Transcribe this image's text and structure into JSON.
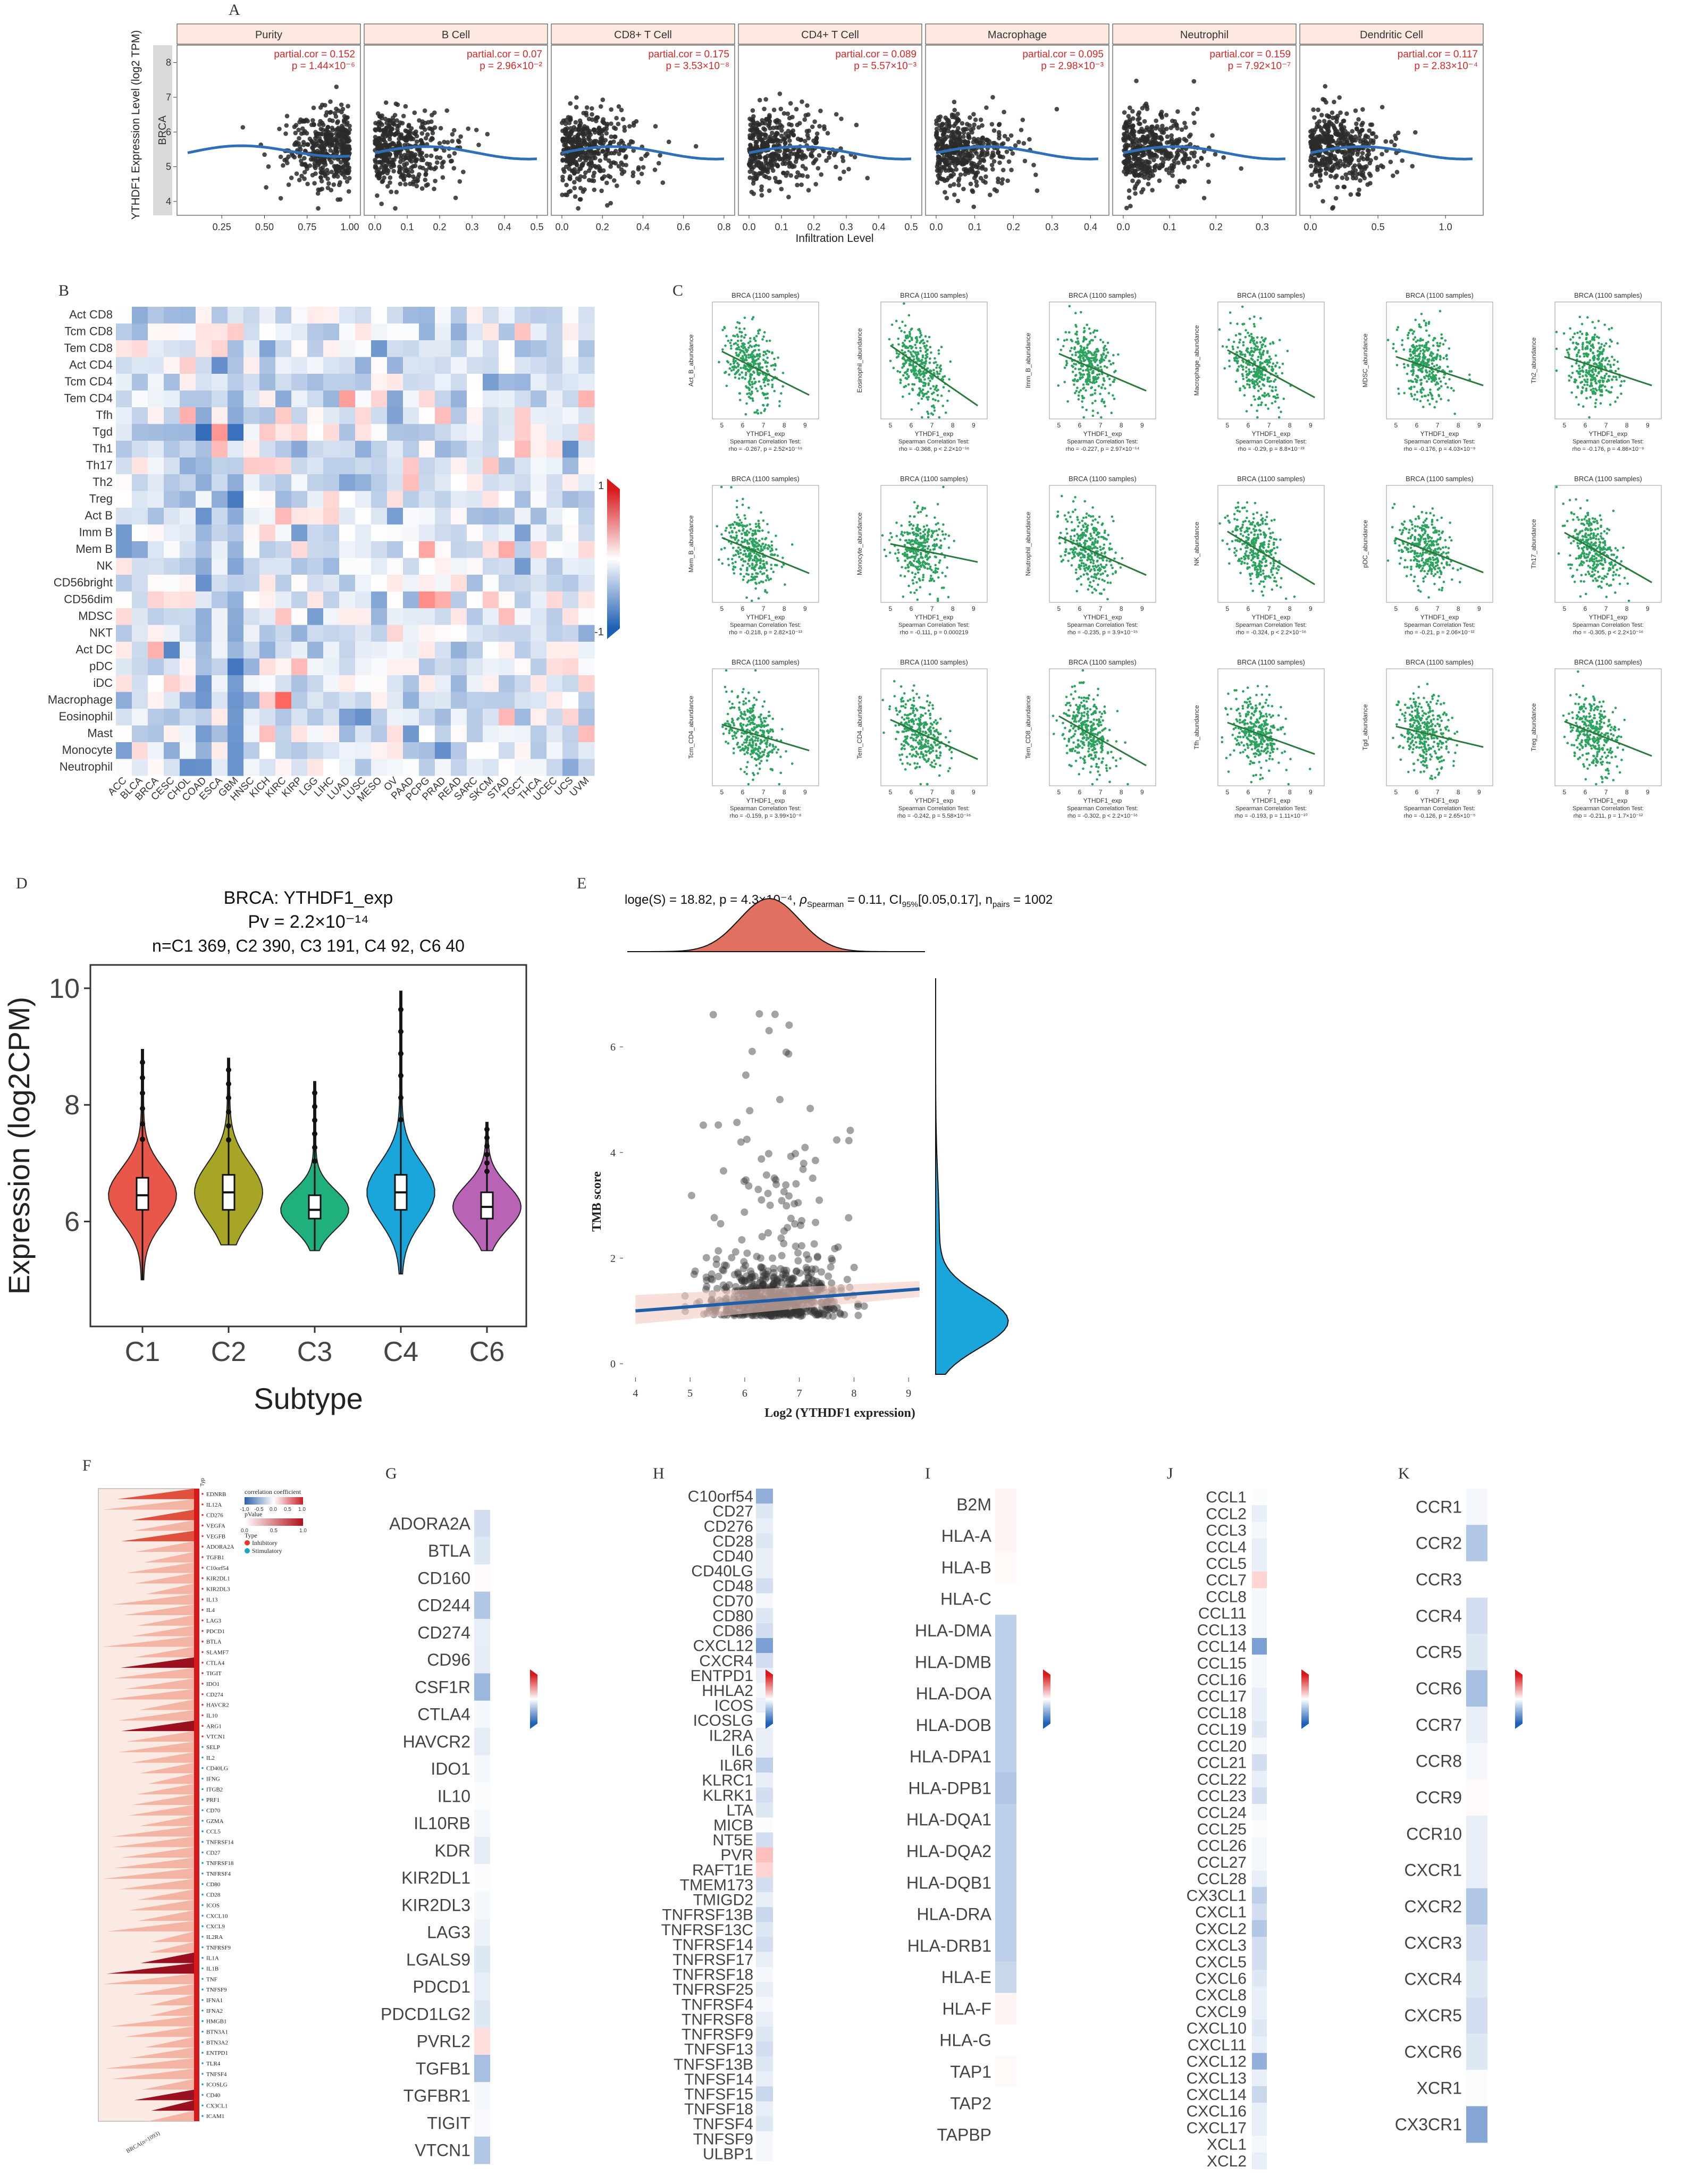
{
  "panels": {
    "A": {
      "label": "A",
      "ylabel": "YTHDF1 Expression Level (log2 TPM)",
      "cancer": "BRCA",
      "xlabel": "Infiltration Level",
      "y_ticks": [
        "4",
        "5",
        "6",
        "7",
        "8"
      ],
      "facets": [
        {
          "title": "Purity",
          "cor": "partial.cor = 0.152",
          "p": "p = 1.44×10⁻⁶",
          "ticks": [
            "0.25",
            "0.50",
            "0.75",
            "1.00"
          ],
          "range": [
            0.05,
            1.0
          ]
        },
        {
          "title": "B Cell",
          "cor": "partial.cor = 0.07",
          "p": "p = 2.96×10⁻²",
          "ticks": [
            "0.0",
            "0.1",
            "0.2",
            "0.3",
            "0.4",
            "0.5"
          ],
          "range": [
            0.0,
            0.5
          ]
        },
        {
          "title": "CD8+ T Cell",
          "cor": "partial.cor = 0.175",
          "p": "p = 3.53×10⁻⁸",
          "ticks": [
            "0.0",
            "0.2",
            "0.4",
            "0.6",
            "0.8"
          ],
          "range": [
            0.0,
            0.8
          ]
        },
        {
          "title": "CD4+ T Cell",
          "cor": "partial.cor = 0.089",
          "p": "p = 5.57×10⁻³",
          "ticks": [
            "0.0",
            "0.1",
            "0.2",
            "0.3",
            "0.4",
            "0.5"
          ],
          "range": [
            0.0,
            0.5
          ]
        },
        {
          "title": "Macrophage",
          "cor": "partial.cor = 0.095",
          "p": "p = 2.98×10⁻³",
          "ticks": [
            "0.0",
            "0.1",
            "0.2",
            "0.3",
            "0.4"
          ],
          "range": [
            0.0,
            0.42
          ]
        },
        {
          "title": "Neutrophil",
          "cor": "partial.cor = 0.159",
          "p": "p = 7.92×10⁻⁷",
          "ticks": [
            "0.0",
            "0.1",
            "0.2",
            "0.3"
          ],
          "range": [
            0.0,
            0.35
          ]
        },
        {
          "title": "Dendritic Cell",
          "cor": "partial.cor = 0.117",
          "p": "p = 2.83×10⁻⁴",
          "ticks": [
            "0.0",
            "0.5",
            "1.0"
          ],
          "range": [
            0.0,
            1.2
          ]
        }
      ]
    },
    "B": {
      "label": "B",
      "rows": [
        "Act CD8",
        "Tcm CD8",
        "Tem CD8",
        "Act CD4",
        "Tcm CD4",
        "Tem CD4",
        "Tfh",
        "Tgd",
        "Th1",
        "Th17",
        "Th2",
        "Treg",
        "Act B",
        "Imm B",
        "Mem B",
        "NK",
        "CD56bright",
        "CD56dim",
        "MDSC",
        "NKT",
        "Act DC",
        "pDC",
        "iDC",
        "Macrophage",
        "Eosinophil",
        "Mast",
        "Monocyte",
        "Neutrophil"
      ],
      "cols": [
        "ACC",
        "BLCA",
        "BRCA",
        "CESC",
        "CHOL",
        "COAD",
        "ESCA",
        "GBM",
        "HNSC",
        "KICH",
        "KIRC",
        "KIRP",
        "LGG",
        "LIHC",
        "LUAD",
        "LUSC",
        "MESO",
        "OV",
        "PAAD",
        "PCPG",
        "PRAD",
        "READ",
        "SARC",
        "SKCM",
        "STAD",
        "TGCT",
        "THCA",
        "UCEC",
        "UCS",
        "UVM"
      ],
      "legend_max": "1",
      "legend_min": "-1"
    },
    "C": {
      "label": "C",
      "plots": [
        {
          "title": "BRCA (1100 samples)",
          "ylabel": "Act_B_abundance",
          "xlabel": "YTHDF1_exp",
          "test": "Spearman Correlation Test:",
          "stat": "rho = -0.267,   p = 2.52×10⁻¹⁹",
          "rho": -0.267
        },
        {
          "title": "BRCA (1100 samples)",
          "ylabel": "Eosinophil_abundance",
          "xlabel": "YTHDF1_exp",
          "test": "Spearman Correlation Test:",
          "stat": "rho = -0.368,   p < 2.2×10⁻¹⁶",
          "rho": -0.368
        },
        {
          "title": "BRCA (1100 samples)",
          "ylabel": "Imm_B_abundance",
          "xlabel": "YTHDF1_exp",
          "test": "Spearman Correlation Test:",
          "stat": "rho = -0.227,   p = 2.97×10⁻¹⁴",
          "rho": -0.227
        },
        {
          "title": "BRCA (1100 samples)",
          "ylabel": "Macrophage_abundance",
          "xlabel": "YTHDF1_exp",
          "test": "Spearman Correlation Test:",
          "stat": "rho = -0.29,   p = 8.8×10⁻²³",
          "rho": -0.29
        },
        {
          "title": "BRCA (1100 samples)",
          "ylabel": "MDSC_abundance",
          "xlabel": "YTHDF1_exp",
          "test": "Spearman Correlation Test:",
          "stat": "rho = -0.176,   p = 4.03×10⁻⁹",
          "rho": -0.176
        },
        {
          "title": "BRCA (1100 samples)",
          "ylabel": "Th2_abundance",
          "xlabel": "YTHDF1_exp",
          "test": "Spearman Correlation Test:",
          "stat": "rho = -0.176,   p = 4.86×10⁻⁹",
          "rho": -0.176
        },
        {
          "title": "BRCA (1100 samples)",
          "ylabel": "Mem_B_abundance",
          "xlabel": "YTHDF1_exp",
          "test": "Spearman Correlation Test:",
          "stat": "rho = -0.218,   p = 2.82×10⁻¹³",
          "rho": -0.218
        },
        {
          "title": "BRCA (1100 samples)",
          "ylabel": "Monocyte_abundance",
          "xlabel": "YTHDF1_exp",
          "test": "Spearman Correlation Test:",
          "stat": "rho = -0.111,   p = 0.000219",
          "rho": -0.111
        },
        {
          "title": "BRCA (1100 samples)",
          "ylabel": "Neutrophil_abundance",
          "xlabel": "YTHDF1_exp",
          "test": "Spearman Correlation Test:",
          "stat": "rho = -0.235,   p = 3.9×10⁻¹⁵",
          "rho": -0.235
        },
        {
          "title": "BRCA (1100 samples)",
          "ylabel": "NK_abundance",
          "xlabel": "YTHDF1_exp",
          "test": "Spearman Correlation Test:",
          "stat": "rho = -0.324,   p < 2.2×10⁻¹⁶",
          "rho": -0.324
        },
        {
          "title": "BRCA (1100 samples)",
          "ylabel": "pDC_abundance",
          "xlabel": "YTHDF1_exp",
          "test": "Spearman Correlation Test:",
          "stat": "rho = -0.21,   p = 2.06×10⁻¹²",
          "rho": -0.21
        },
        {
          "title": "BRCA (1100 samples)",
          "ylabel": "Th17_abundance",
          "xlabel": "YTHDF1_exp",
          "test": "Spearman Correlation Test:",
          "stat": "rho = -0.305,   p < 2.2×10⁻¹⁶",
          "rho": -0.305
        },
        {
          "title": "BRCA (1100 samples)",
          "ylabel": "Tcm_CD4_abundance",
          "xlabel": "YTHDF1_exp",
          "test": "Spearman Correlation Test:",
          "stat": "rho = -0.159,   p = 3.99×10⁻⁸",
          "rho": -0.159
        },
        {
          "title": "BRCA (1100 samples)",
          "ylabel": "Tem_CD4_abundance",
          "xlabel": "YTHDF1_exp",
          "test": "Spearman Correlation Test:",
          "stat": "rho = -0.242,   p = 5.58×10⁻¹⁶",
          "rho": -0.242
        },
        {
          "title": "BRCA (1100 samples)",
          "ylabel": "Tem_CD8_abundance",
          "xlabel": "YTHDF1_exp",
          "test": "Spearman Correlation Test:",
          "stat": "rho = -0.302,   p < 2.2×10⁻¹⁶",
          "rho": -0.302
        },
        {
          "title": "BRCA (1100 samples)",
          "ylabel": "Tfh_abundance",
          "xlabel": "YTHDF1_exp",
          "test": "Spearman Correlation Test:",
          "stat": "rho = -0.193,   p = 1.11×10⁻¹⁰",
          "rho": -0.193
        },
        {
          "title": "BRCA (1100 samples)",
          "ylabel": "Tgd_abundance",
          "xlabel": "YTHDF1_exp",
          "test": "Spearman Correlation Test:",
          "stat": "rho = -0.126,   p = 2.65×10⁻⁵",
          "rho": -0.126
        },
        {
          "title": "BRCA (1100 samples)",
          "ylabel": "Treg_abundance",
          "xlabel": "YTHDF1_exp",
          "test": "Spearman Correlation Test:",
          "stat": "rho = -0.211,   p = 1.7×10⁻¹²",
          "rho": -0.211
        }
      ],
      "x_ticks": [
        "5",
        "6",
        "7",
        "8",
        "9"
      ]
    },
    "D": {
      "label": "D",
      "title1": "BRCA: YTHDF1_exp",
      "title2": "Pv = 2.2×10⁻¹⁴",
      "title3": "n=C1 369, C2 390, C3 191, C4 92, C6 40",
      "ylabel": "Expression (log2CPM)",
      "xlabel": "Subtype",
      "y_ticks": [
        "6",
        "8",
        "10"
      ],
      "groups": [
        {
          "name": "C1",
          "color": "#e8574a",
          "min": 5.0,
          "q1": 6.2,
          "median": 6.45,
          "q3": 6.75,
          "max": 8.95
        },
        {
          "name": "C2",
          "color": "#a6a526",
          "min": 5.6,
          "q1": 6.2,
          "median": 6.5,
          "q3": 6.8,
          "max": 8.8
        },
        {
          "name": "C3",
          "color": "#1fb07b",
          "min": 5.5,
          "q1": 6.05,
          "median": 6.2,
          "q3": 6.45,
          "max": 8.4
        },
        {
          "name": "C4",
          "color": "#1aa5db",
          "min": 5.1,
          "q1": 6.2,
          "median": 6.5,
          "q3": 6.8,
          "max": 9.95
        },
        {
          "name": "C6",
          "color": "#b863b6",
          "min": 5.5,
          "q1": 6.05,
          "median": 6.25,
          "q3": 6.5,
          "max": 7.7
        }
      ]
    },
    "E": {
      "label": "E",
      "stat_prefix": "loge(S) = 18.82, p = 4.3×10⁻⁴,  ",
      "stat_rho": "ρ",
      "stat_rho_sub": "Spearman",
      "stat_suffix": " = 0.11, CI",
      "stat_ci_sub": "95%",
      "stat_ci": "[0.05,0.17], n",
      "stat_n_sub": "pairs",
      "stat_n": " = 1002",
      "ylabel": "TMB score",
      "xlabel": "Log2 (YTHDF1 expression)",
      "x_ticks": [
        "4",
        "5",
        "6",
        "7",
        "8",
        "9"
      ],
      "y_ticks": [
        "0",
        "2",
        "4",
        "6"
      ],
      "n_points": 1002
    },
    "F": {
      "label": "F",
      "genes": [
        "EDNRB",
        "IL12A",
        "CD276",
        "VEGFA",
        "VEGFB",
        "ADORA2A",
        "TGFB1",
        "C10orf54",
        "KIR2DL1",
        "KIR2DL3",
        "IL13",
        "IL4",
        "LAG3",
        "PDCD1",
        "BTLA",
        "SLAMF7",
        "CTLA4",
        "TIGIT",
        "IDO1",
        "CD274",
        "HAVCR2",
        "IL10",
        "ARG1",
        "VTCN1",
        "SELP",
        "IL2",
        "CD40LG",
        "IFNG",
        "ITGB2",
        "PRF1",
        "CD70",
        "GZMA",
        "CCL5",
        "TNFRSF14",
        "CD27",
        "TNFRSF18",
        "TNFRSF4",
        "CD80",
        "CD28",
        "ICOS",
        "CXCL10",
        "CXCL9",
        "IL2RA",
        "TNFRSF9",
        "IL1A",
        "IL1B",
        "TNF",
        "TNFSF9",
        "IFNA1",
        "IFNA2",
        "HMGB1",
        "BTN3A1",
        "BTN3A2",
        "ENTPD1",
        "TLR4",
        "TNFSF4",
        "ICOSLG",
        "CD40",
        "CX3CL1",
        "ICAM1"
      ],
      "sample": "BRCA(n=1093)",
      "legend_title1": "correlation coefficient",
      "legend_ticks1": [
        "-1.0",
        "-0.5",
        "0.0",
        "0.5",
        "1.0"
      ],
      "legend_title2": "pValue",
      "legend_ticks2": [
        "0.0",
        "0.5",
        "1.0"
      ],
      "legend_type_title": "Type",
      "legend_type1": "Inhibitory",
      "legend_type2": "Stimulatory",
      "type_col_label": "Type"
    },
    "G": {
      "label": "G",
      "genes": [
        "ADORA2A",
        "BTLA",
        "CD160",
        "CD244",
        "CD274",
        "CD96",
        "CSF1R",
        "CTLA4",
        "HAVCR2",
        "IDO1",
        "IL10",
        "IL10RB",
        "KDR",
        "KIR2DL1",
        "KIR2DL3",
        "LAG3",
        "LGALS9",
        "PDCD1",
        "PDCD1LG2",
        "PVRL2",
        "TGFB1",
        "TGFBR1",
        "TIGIT",
        "VTCN1"
      ],
      "values": [
        -0.2,
        -0.15,
        0.02,
        -0.35,
        -0.1,
        -0.12,
        -0.45,
        -0.05,
        -0.12,
        -0.05,
        -0.02,
        -0.05,
        -0.12,
        -0.02,
        -0.04,
        -0.08,
        -0.15,
        -0.1,
        -0.15,
        0.15,
        -0.4,
        -0.05,
        -0.03,
        -0.35
      ]
    },
    "H": {
      "label": "H",
      "genes": [
        "C10orf54",
        "CD27",
        "CD276",
        "CD28",
        "CD40",
        "CD40LG",
        "CD48",
        "CD70",
        "CD80",
        "CD86",
        "CXCL12",
        "CXCR4",
        "ENTPD1",
        "HHLA2",
        "ICOS",
        "ICOSLG",
        "IL2RA",
        "IL6",
        "IL6R",
        "KLRC1",
        "KLRK1",
        "LTA",
        "MICB",
        "NT5E",
        "PVR",
        "RAFT1E",
        "TMEM173",
        "TMIGD2",
        "TNFRSF13B",
        "TNFRSF13C",
        "TNFRSF14",
        "TNFRSF17",
        "TNFRSF18",
        "TNFRSF25",
        "TNFRSF4",
        "TNFRSF8",
        "TNFRSF9",
        "TNFSF13",
        "TNFSF13B",
        "TNFSF14",
        "TNFSF15",
        "TNFSF18",
        "TNFSF4",
        "TNFSF9",
        "ULBP1"
      ],
      "values": [
        -0.5,
        -0.15,
        -0.1,
        -0.15,
        -0.1,
        -0.1,
        -0.2,
        -0.05,
        -0.15,
        -0.2,
        -0.6,
        -0.2,
        -0.1,
        -0.05,
        -0.1,
        -0.02,
        -0.1,
        -0.1,
        -0.3,
        -0.1,
        -0.2,
        -0.15,
        -0.02,
        -0.2,
        0.3,
        0.2,
        -0.2,
        -0.1,
        -0.25,
        -0.15,
        -0.2,
        -0.1,
        -0.05,
        -0.1,
        -0.05,
        -0.1,
        -0.15,
        -0.2,
        -0.15,
        -0.1,
        -0.25,
        -0.1,
        -0.15,
        -0.05,
        -0.05
      ]
    },
    "I": {
      "label": "I",
      "genes": [
        "B2M",
        "HLA-A",
        "HLA-B",
        "HLA-C",
        "HLA-DMA",
        "HLA-DMB",
        "HLA-DOA",
        "HLA-DOB",
        "HLA-DPA1",
        "HLA-DPB1",
        "HLA-DQA1",
        "HLA-DQA2",
        "HLA-DQB1",
        "HLA-DRA",
        "HLA-DRB1",
        "HLA-E",
        "HLA-F",
        "HLA-G",
        "TAP1",
        "TAP2",
        "TAPBP"
      ],
      "values": [
        0.05,
        0.05,
        0.03,
        0.0,
        -0.3,
        -0.3,
        -0.3,
        -0.3,
        -0.3,
        -0.35,
        -0.3,
        -0.3,
        -0.3,
        -0.3,
        -0.3,
        -0.25,
        0.05,
        0.0,
        0.03,
        0.0,
        0.0
      ]
    },
    "J": {
      "label": "J",
      "genes": [
        "CCL1",
        "CCL2",
        "CCL3",
        "CCL4",
        "CCL5",
        "CCL7",
        "CCL8",
        "CCL11",
        "CCL13",
        "CCL14",
        "CCL15",
        "CCL16",
        "CCL17",
        "CCL18",
        "CCL19",
        "CCL20",
        "CCL21",
        "CCL22",
        "CCL23",
        "CCL24",
        "CCL25",
        "CCL26",
        "CCL27",
        "CCL28",
        "CX3CL1",
        "CXCL1",
        "CXCL2",
        "CXCL3",
        "CXCL5",
        "CXCL6",
        "CXCL8",
        "CXCL9",
        "CXCL10",
        "CXCL11",
        "CXCL12",
        "CXCL13",
        "CXCL14",
        "CXCL16",
        "CXCL17",
        "XCL1",
        "XCL2"
      ],
      "values": [
        -0.02,
        -0.1,
        -0.05,
        -0.1,
        -0.1,
        0.2,
        -0.05,
        -0.05,
        -0.05,
        -0.6,
        -0.05,
        -0.05,
        -0.1,
        -0.1,
        -0.15,
        -0.05,
        -0.2,
        -0.1,
        -0.2,
        -0.05,
        -0.02,
        -0.05,
        -0.05,
        -0.1,
        -0.3,
        -0.2,
        -0.35,
        -0.2,
        -0.2,
        -0.15,
        -0.1,
        -0.1,
        -0.15,
        -0.1,
        -0.5,
        -0.1,
        -0.25,
        -0.1,
        -0.1,
        -0.05,
        -0.1
      ]
    },
    "K": {
      "label": "K",
      "genes": [
        "CCR1",
        "CCR2",
        "CCR3",
        "CCR4",
        "CCR5",
        "CCR6",
        "CCR7",
        "CCR8",
        "CCR9",
        "CCR10",
        "CXCR1",
        "CXCR2",
        "CXCR3",
        "CXCR4",
        "CXCR5",
        "CXCR6",
        "XCR1",
        "CX3CR1"
      ],
      "values": [
        -0.05,
        -0.35,
        0.0,
        -0.2,
        -0.15,
        -0.4,
        -0.1,
        -0.05,
        0.02,
        -0.1,
        -0.1,
        -0.35,
        -0.2,
        -0.15,
        -0.2,
        -0.15,
        -0.02,
        -0.55
      ]
    }
  },
  "colors": {
    "pos": "#d7191c",
    "neg": "#2c6fbb",
    "scatterA": "#2a2a2a",
    "scatterC": "#2ca25f",
    "lineA": "#2e6fb8",
    "lineC": "#2a7a3d",
    "red_text": "#d62728"
  }
}
